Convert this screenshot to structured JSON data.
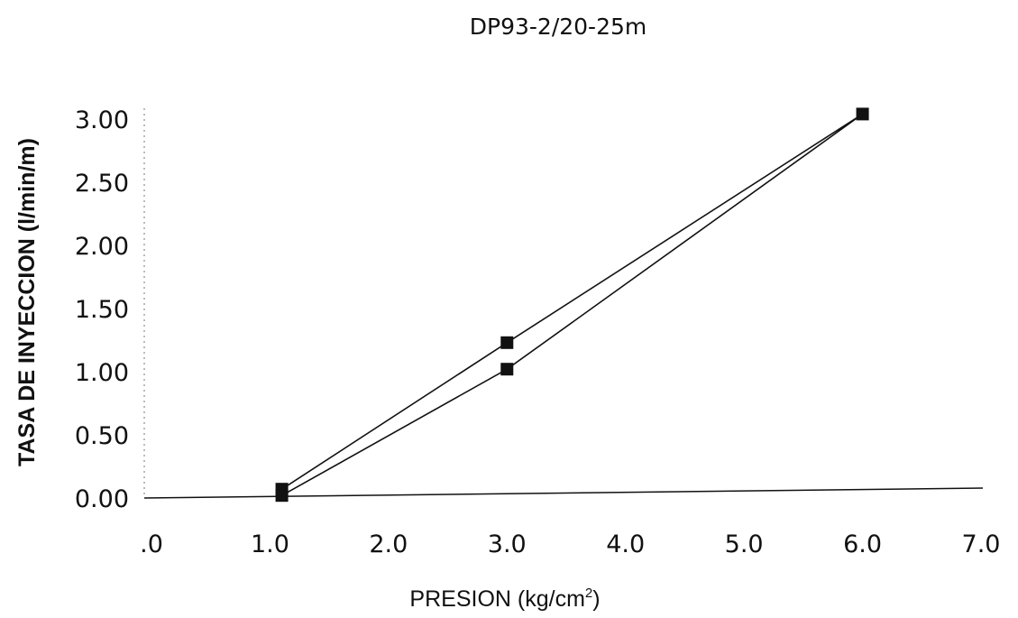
{
  "chart_data": {
    "type": "line",
    "title": "DP93-2/20-25m",
    "xlabel": "PRESION (kg/cm",
    "xlabel_superscript": "2",
    "xlabel_suffix": ")",
    "ylabel": "TASA DE INYECCION (l/min/m)",
    "xlim": [
      0,
      7
    ],
    "ylim": [
      0,
      3
    ],
    "x_ticks": [
      ".0",
      "1.0",
      "2.0",
      "3.0",
      "4.0",
      "5.0",
      "6.0",
      "7.0"
    ],
    "y_ticks": [
      "0.00",
      "0.50",
      "1.00",
      "1.50",
      "2.00",
      "2.50",
      "3.00"
    ],
    "grid": false,
    "legend": "none",
    "series": [
      {
        "points": [
          {
            "x": 1.1,
            "y": 0.07
          },
          {
            "x": 3.0,
            "y": 1.23
          },
          {
            "x": 6.0,
            "y": 3.04
          },
          {
            "x": 3.0,
            "y": 1.02
          },
          {
            "x": 1.1,
            "y": 0.02
          }
        ],
        "color": "#111111",
        "marker": "square"
      }
    ]
  }
}
